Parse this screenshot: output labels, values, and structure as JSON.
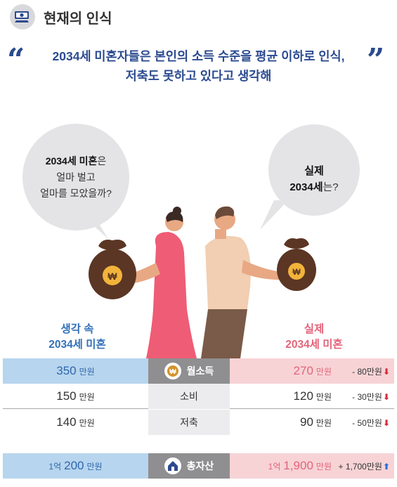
{
  "header": {
    "title": "현재의 인식",
    "icon": "money-bill-icon"
  },
  "quote": {
    "line1": "2034세 미혼자들은 본인의 소득 수준을 평균 이하로 인식,",
    "line2": "저축도 못하고 있다고 생각해",
    "open_mark": "“",
    "close_mark": "”"
  },
  "bubble_left": {
    "bold": "2034세 미혼",
    "after_bold": "은",
    "line2": "얼마 벌고",
    "line3": "얼마를 모았을까?"
  },
  "bubble_right": {
    "line1": "실제",
    "bold": "2034세",
    "after_bold": "는?"
  },
  "columns": {
    "left_line1": "생각 속",
    "left_line2": "2034세 미혼",
    "right_line1": "실제",
    "right_line2": "2034세 미혼"
  },
  "rows": [
    {
      "label": "월소득",
      "left": "350",
      "left_unit": "만원",
      "right": "270",
      "right_unit": "만원",
      "diff": "- 80만원",
      "dir": "down",
      "icon": "won-coin-icon"
    },
    {
      "label": "소비",
      "left": "150",
      "left_unit": "만원",
      "right": "120",
      "right_unit": "만원",
      "diff": "- 30만원",
      "dir": "down"
    },
    {
      "label": "저축",
      "left": "140",
      "left_unit": "만원",
      "right": "90",
      "right_unit": "만원",
      "diff": "- 50만원",
      "dir": "down"
    },
    {
      "label": "총자산",
      "left_pre": "1억",
      "left": "200",
      "left_unit": "만원",
      "right_pre": "1억",
      "right": "1,900",
      "right_unit": "만원",
      "diff": "+ 1,700만원",
      "dir": "up",
      "icon": "house-icon"
    }
  ],
  "colors": {
    "blue": "#3471b8",
    "pink": "#e3647a",
    "navy": "#2b4a90",
    "down_arrow": "#d52b40",
    "up_arrow": "#2e6bd0"
  }
}
